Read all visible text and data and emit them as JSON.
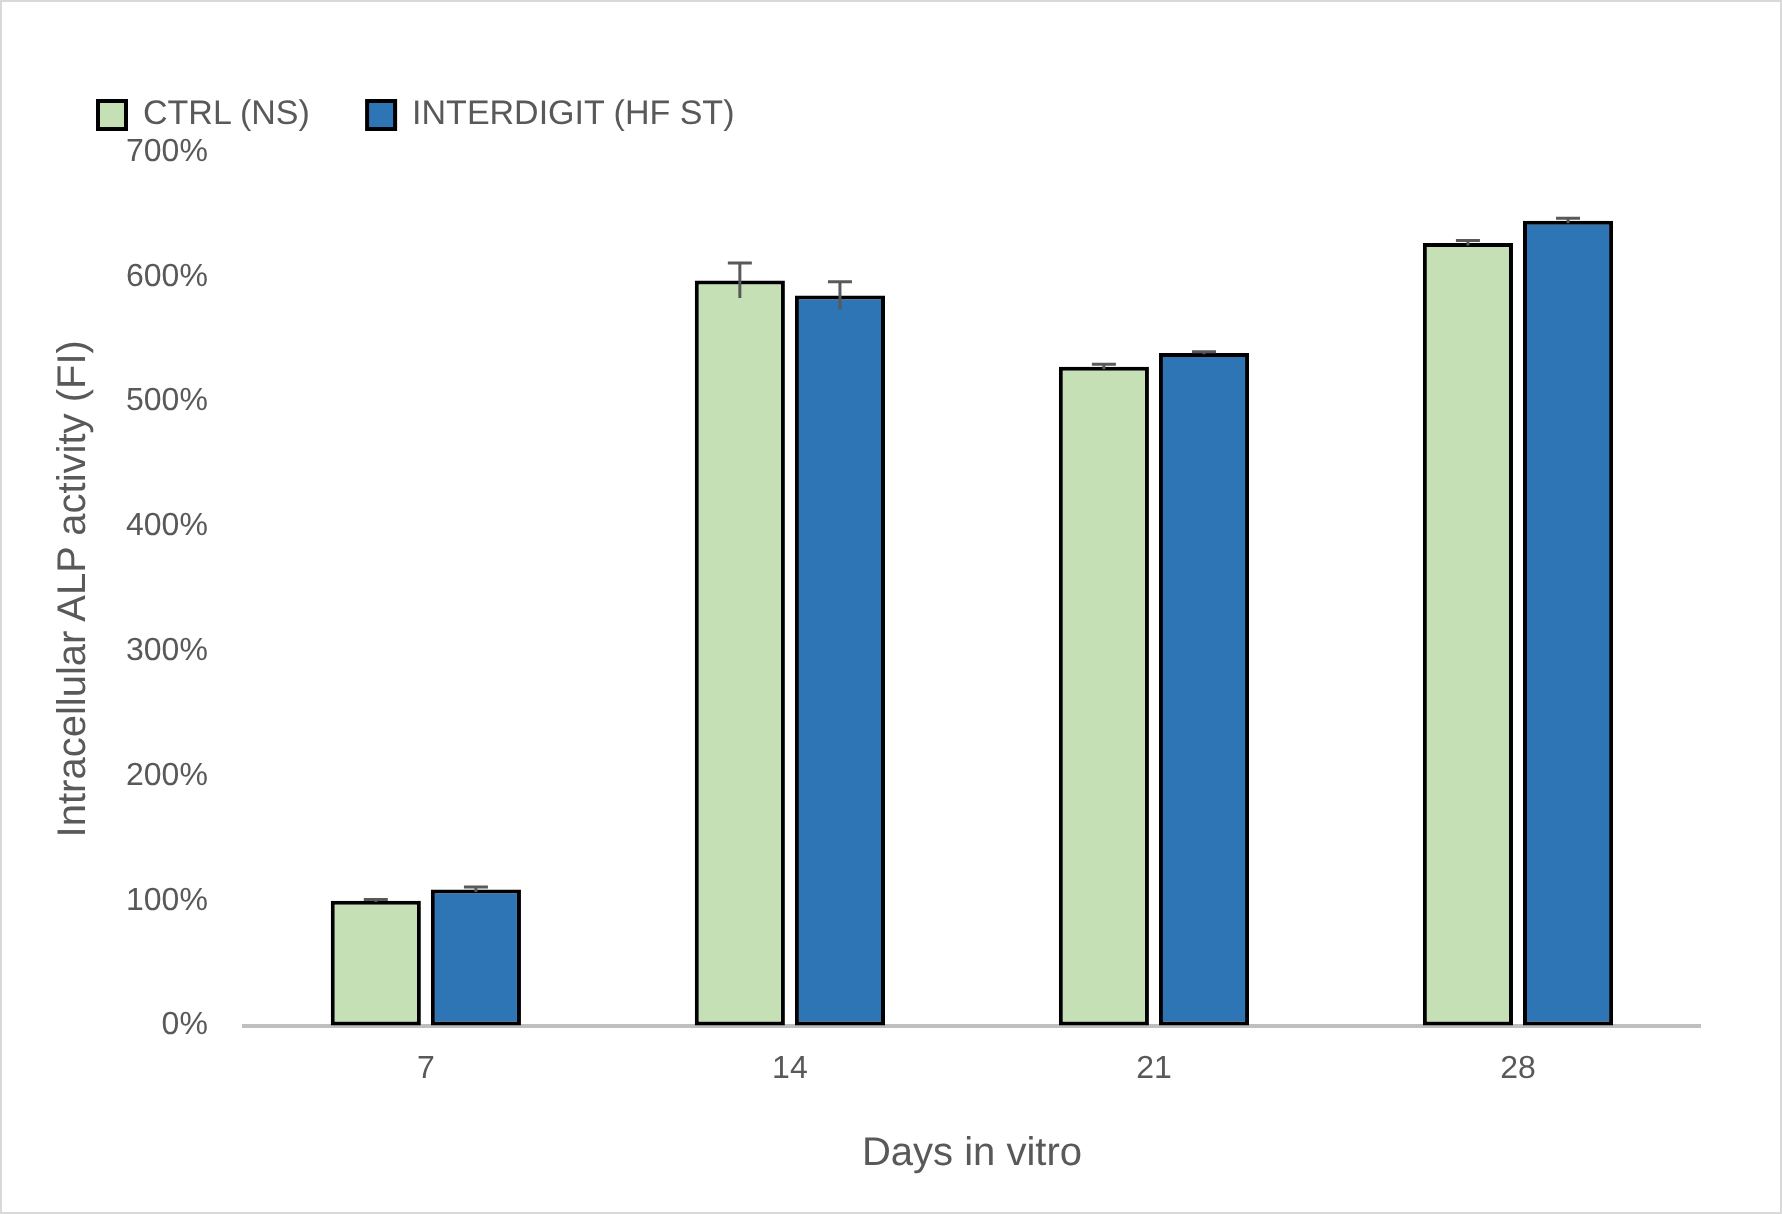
{
  "chart_data": {
    "type": "bar",
    "xlabel": "Days in vitro",
    "ylabel": "Intracellular ALP activity (FI)",
    "categories": [
      "7",
      "14",
      "21",
      "28"
    ],
    "series": [
      {
        "name": "CTRL (NS)",
        "color": "#c5e0b4",
        "values": [
          100,
          597,
          528,
          627
        ],
        "errors": [
          1,
          14,
          2,
          2
        ]
      },
      {
        "name": "INTERDIGIT (HF ST)",
        "color": "#2e75b6",
        "values": [
          109,
          585,
          539,
          645
        ],
        "errors": [
          2,
          11,
          1,
          2
        ]
      }
    ],
    "ylim": [
      0,
      700
    ],
    "yticks": [
      {
        "value": 0,
        "label": "0%"
      },
      {
        "value": 100,
        "label": "100%"
      },
      {
        "value": 200,
        "label": "200%"
      },
      {
        "value": 300,
        "label": "300%"
      },
      {
        "value": 400,
        "label": "400%"
      },
      {
        "value": 500,
        "label": "500%"
      },
      {
        "value": 600,
        "label": "600%"
      },
      {
        "value": 700,
        "label": "700%"
      }
    ],
    "grid": false,
    "legend": "top left"
  }
}
